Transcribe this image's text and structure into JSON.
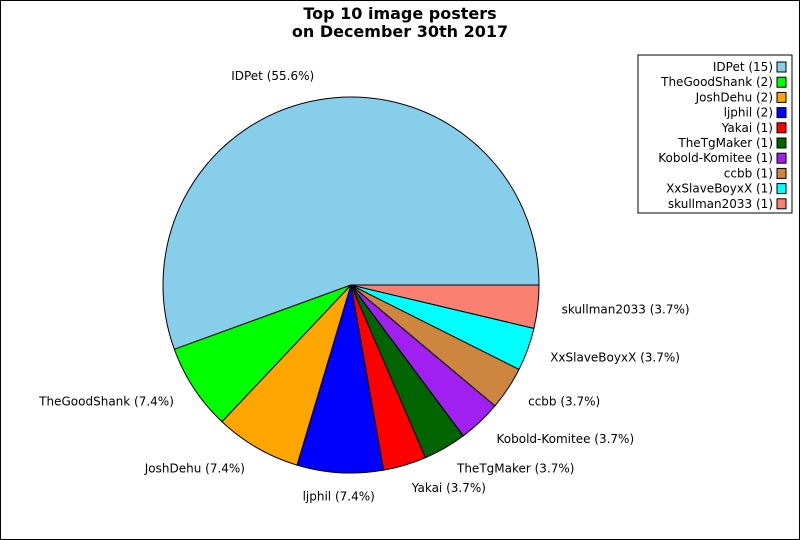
{
  "chart_data": {
    "type": "pie",
    "title": "Top 10 image posters",
    "subtitle": "on December 30th 2017",
    "slices": [
      {
        "name": "IDPet",
        "value": 15,
        "percent_label": "IDPet (55.6%)",
        "legend_label": "IDPet (15)",
        "color": "#87ceeb"
      },
      {
        "name": "TheGoodShank",
        "value": 2,
        "percent_label": "TheGoodShank (7.4%)",
        "legend_label": "TheGoodShank (2)",
        "color": "#00ff00"
      },
      {
        "name": "JoshDehu",
        "value": 2,
        "percent_label": "JoshDehu (7.4%)",
        "legend_label": "JoshDehu (2)",
        "color": "#ffa500"
      },
      {
        "name": "ljphil",
        "value": 2,
        "percent_label": "ljphil (7.4%)",
        "legend_label": "ljphil (2)",
        "color": "#0000ff"
      },
      {
        "name": "Yakai",
        "value": 1,
        "percent_label": "Yakai (3.7%)",
        "legend_label": "Yakai (1)",
        "color": "#ff0000"
      },
      {
        "name": "TheTgMaker",
        "value": 1,
        "percent_label": "TheTgMaker (3.7%)",
        "legend_label": "TheTgMaker (1)",
        "color": "#006400"
      },
      {
        "name": "Kobold-Komitee",
        "value": 1,
        "percent_label": "Kobold-Komitee (3.7%)",
        "legend_label": "Kobold-Komitee (1)",
        "color": "#a020f0"
      },
      {
        "name": "ccbb",
        "value": 1,
        "percent_label": "ccbb (3.7%)",
        "legend_label": "ccbb (1)",
        "color": "#cd853f"
      },
      {
        "name": "XxSlaveBoyxX",
        "value": 1,
        "percent_label": "XxSlaveBoyxX (3.7%)",
        "legend_label": "XxSlaveBoyxX (1)",
        "color": "#00ffff"
      },
      {
        "name": "skullman2033",
        "value": 1,
        "percent_label": "skullman2033 (3.7%)",
        "legend_label": "skullman2033 (1)",
        "color": "#fa8072"
      }
    ],
    "legend_position": "top-right",
    "start_angle_deg": 0,
    "direction": "counterclockwise"
  }
}
